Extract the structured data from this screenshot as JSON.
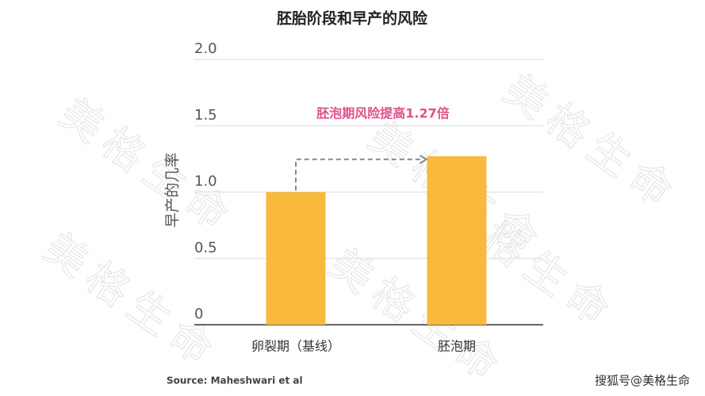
{
  "chart_data": {
    "type": "bar",
    "title": "胚胎阶段和早产的风险",
    "ylabel": "早产的几率",
    "categories": [
      "卵裂期（基线）",
      "胚泡期"
    ],
    "values": [
      1.0,
      1.27
    ],
    "color": "#f9b93c",
    "ylim": [
      0,
      2
    ],
    "yticks": [
      0,
      {
        "value": 0.5,
        "label": "0.5"
      },
      {
        "value": 1,
        "label": "1.0"
      },
      {
        "value": 1.5,
        "label": "1.5"
      },
      {
        "value": 2,
        "label": "2.0"
      }
    ],
    "grid": true,
    "annotation": "胚泡期风险提高1.27倍",
    "annotation_color": "#e0508a",
    "source": "Source: Maheshwari et al",
    "watermark": "美格生命",
    "credit": "搜狐号@美格生命"
  }
}
